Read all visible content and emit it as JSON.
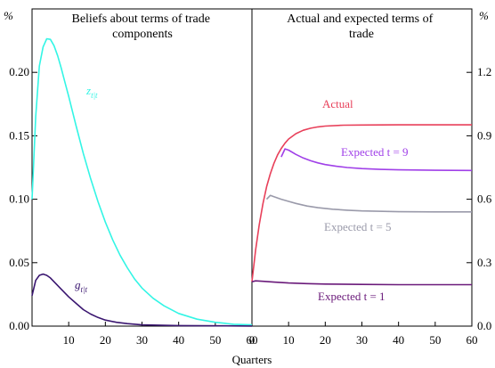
{
  "chart_data": [
    {
      "type": "line",
      "title_lines": [
        "Beliefs about terms of trade",
        "components"
      ],
      "xlabel": "Quarters",
      "ylabel": "%",
      "xlim": [
        0,
        60
      ],
      "ylim": [
        0,
        0.25
      ],
      "xticks": [
        "10",
        "20",
        "30",
        "40",
        "50",
        "60"
      ],
      "yticks": [
        "0.00",
        "0.05",
        "0.10",
        "0.15",
        "0.20"
      ],
      "series": [
        {
          "label_main": "z",
          "label_sub": "t|t",
          "color": "#33f5e5",
          "points": [
            [
              0,
              0.1
            ],
            [
              1,
              0.165
            ],
            [
              2,
              0.205
            ],
            [
              3,
              0.22
            ],
            [
              4,
              0.2265
            ],
            [
              5,
              0.226
            ],
            [
              6,
              0.221
            ],
            [
              7,
              0.213
            ],
            [
              8,
              0.203
            ],
            [
              9,
              0.192
            ],
            [
              10,
              0.181
            ],
            [
              12,
              0.158
            ],
            [
              14,
              0.136
            ],
            [
              16,
              0.116
            ],
            [
              18,
              0.098
            ],
            [
              20,
              0.082
            ],
            [
              22,
              0.068
            ],
            [
              24,
              0.056
            ],
            [
              26,
              0.046
            ],
            [
              28,
              0.037
            ],
            [
              30,
              0.03
            ],
            [
              33,
              0.022
            ],
            [
              36,
              0.016
            ],
            [
              40,
              0.01
            ],
            [
              45,
              0.0055
            ],
            [
              50,
              0.003
            ],
            [
              55,
              0.0015
            ],
            [
              60,
              0.001
            ]
          ]
        },
        {
          "label_main": "g",
          "label_sub": "t|t",
          "color": "#3a1670",
          "points": [
            [
              0,
              0.024
            ],
            [
              1,
              0.036
            ],
            [
              2,
              0.04
            ],
            [
              3,
              0.041
            ],
            [
              4,
              0.04
            ],
            [
              5,
              0.038
            ],
            [
              6,
              0.035
            ],
            [
              8,
              0.029
            ],
            [
              10,
              0.023
            ],
            [
              12,
              0.018
            ],
            [
              14,
              0.013
            ],
            [
              16,
              0.0095
            ],
            [
              18,
              0.0068
            ],
            [
              20,
              0.0048
            ],
            [
              23,
              0.003
            ],
            [
              26,
              0.002
            ],
            [
              30,
              0.001
            ],
            [
              40,
              0.0004
            ],
            [
              60,
              0.0001
            ]
          ]
        }
      ]
    },
    {
      "type": "line",
      "title_lines": [
        "Actual and expected terms of",
        "trade"
      ],
      "xlabel": "Quarters",
      "ylabel": "%",
      "xlim": [
        0,
        60
      ],
      "ylim": [
        0,
        1.5
      ],
      "xticks": [
        "0",
        "10",
        "20",
        "30",
        "40",
        "50",
        "60"
      ],
      "yticks": [
        "0.0",
        "0.3",
        "0.6",
        "0.9",
        "1.2"
      ],
      "series": [
        {
          "name": "Actual",
          "color": "#e8405a",
          "points": [
            [
              0,
              0.21
            ],
            [
              1,
              0.36
            ],
            [
              2,
              0.48
            ],
            [
              3,
              0.58
            ],
            [
              4,
              0.66
            ],
            [
              5,
              0.72
            ],
            [
              6,
              0.77
            ],
            [
              7,
              0.81
            ],
            [
              8,
              0.84
            ],
            [
              9,
              0.865
            ],
            [
              10,
              0.885
            ],
            [
              12,
              0.91
            ],
            [
              14,
              0.926
            ],
            [
              16,
              0.936
            ],
            [
              18,
              0.942
            ],
            [
              20,
              0.946
            ],
            [
              25,
              0.95
            ],
            [
              30,
              0.951
            ],
            [
              40,
              0.952
            ],
            [
              60,
              0.952
            ]
          ]
        },
        {
          "name": "Expected t = 9",
          "color": "#a040e8",
          "points": [
            [
              8,
              0.8
            ],
            [
              9,
              0.838
            ],
            [
              10,
              0.832
            ],
            [
              12,
              0.812
            ],
            [
              14,
              0.795
            ],
            [
              16,
              0.782
            ],
            [
              18,
              0.772
            ],
            [
              20,
              0.764
            ],
            [
              23,
              0.756
            ],
            [
              26,
              0.75
            ],
            [
              30,
              0.745
            ],
            [
              35,
              0.741
            ],
            [
              40,
              0.739
            ],
            [
              50,
              0.737
            ],
            [
              60,
              0.736
            ]
          ]
        },
        {
          "name": "Expected t = 5",
          "color": "#9a9aaa",
          "points": [
            [
              4,
              0.6
            ],
            [
              5,
              0.618
            ],
            [
              6,
              0.612
            ],
            [
              8,
              0.6
            ],
            [
              10,
              0.59
            ],
            [
              12,
              0.58
            ],
            [
              15,
              0.568
            ],
            [
              18,
              0.56
            ],
            [
              22,
              0.553
            ],
            [
              26,
              0.548
            ],
            [
              30,
              0.545
            ],
            [
              40,
              0.541
            ],
            [
              50,
              0.54
            ],
            [
              60,
              0.54
            ]
          ]
        },
        {
          "name": "Expected t = 1",
          "color": "#6a1a7a",
          "points": [
            [
              0,
              0.21
            ],
            [
              1,
              0.214
            ],
            [
              3,
              0.212
            ],
            [
              6,
              0.208
            ],
            [
              10,
              0.204
            ],
            [
              15,
              0.201
            ],
            [
              20,
              0.199
            ],
            [
              30,
              0.197
            ],
            [
              40,
              0.196
            ],
            [
              60,
              0.196
            ]
          ]
        }
      ]
    }
  ]
}
